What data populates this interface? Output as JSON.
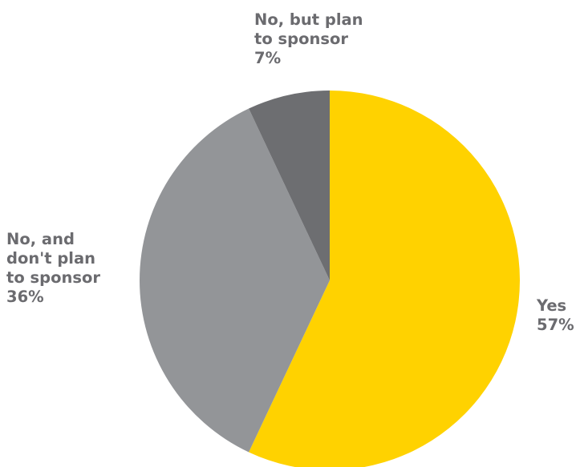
{
  "chart_data": {
    "type": "pie",
    "slices": [
      {
        "label_lines": [
          "Yes"
        ],
        "value": 57,
        "value_label": "57%",
        "color": "#ffd200"
      },
      {
        "label_lines": [
          "No, and",
          "don't plan",
          "to sponsor"
        ],
        "value": 36,
        "value_label": "36%",
        "color": "#939598"
      },
      {
        "label_lines": [
          "No, but plan",
          "to sponsor"
        ],
        "value": 7,
        "value_label": "7%",
        "color": "#6d6e71"
      }
    ],
    "start_angle": "12 o'clock",
    "direction": "clockwise",
    "title": "",
    "legend": "none"
  }
}
